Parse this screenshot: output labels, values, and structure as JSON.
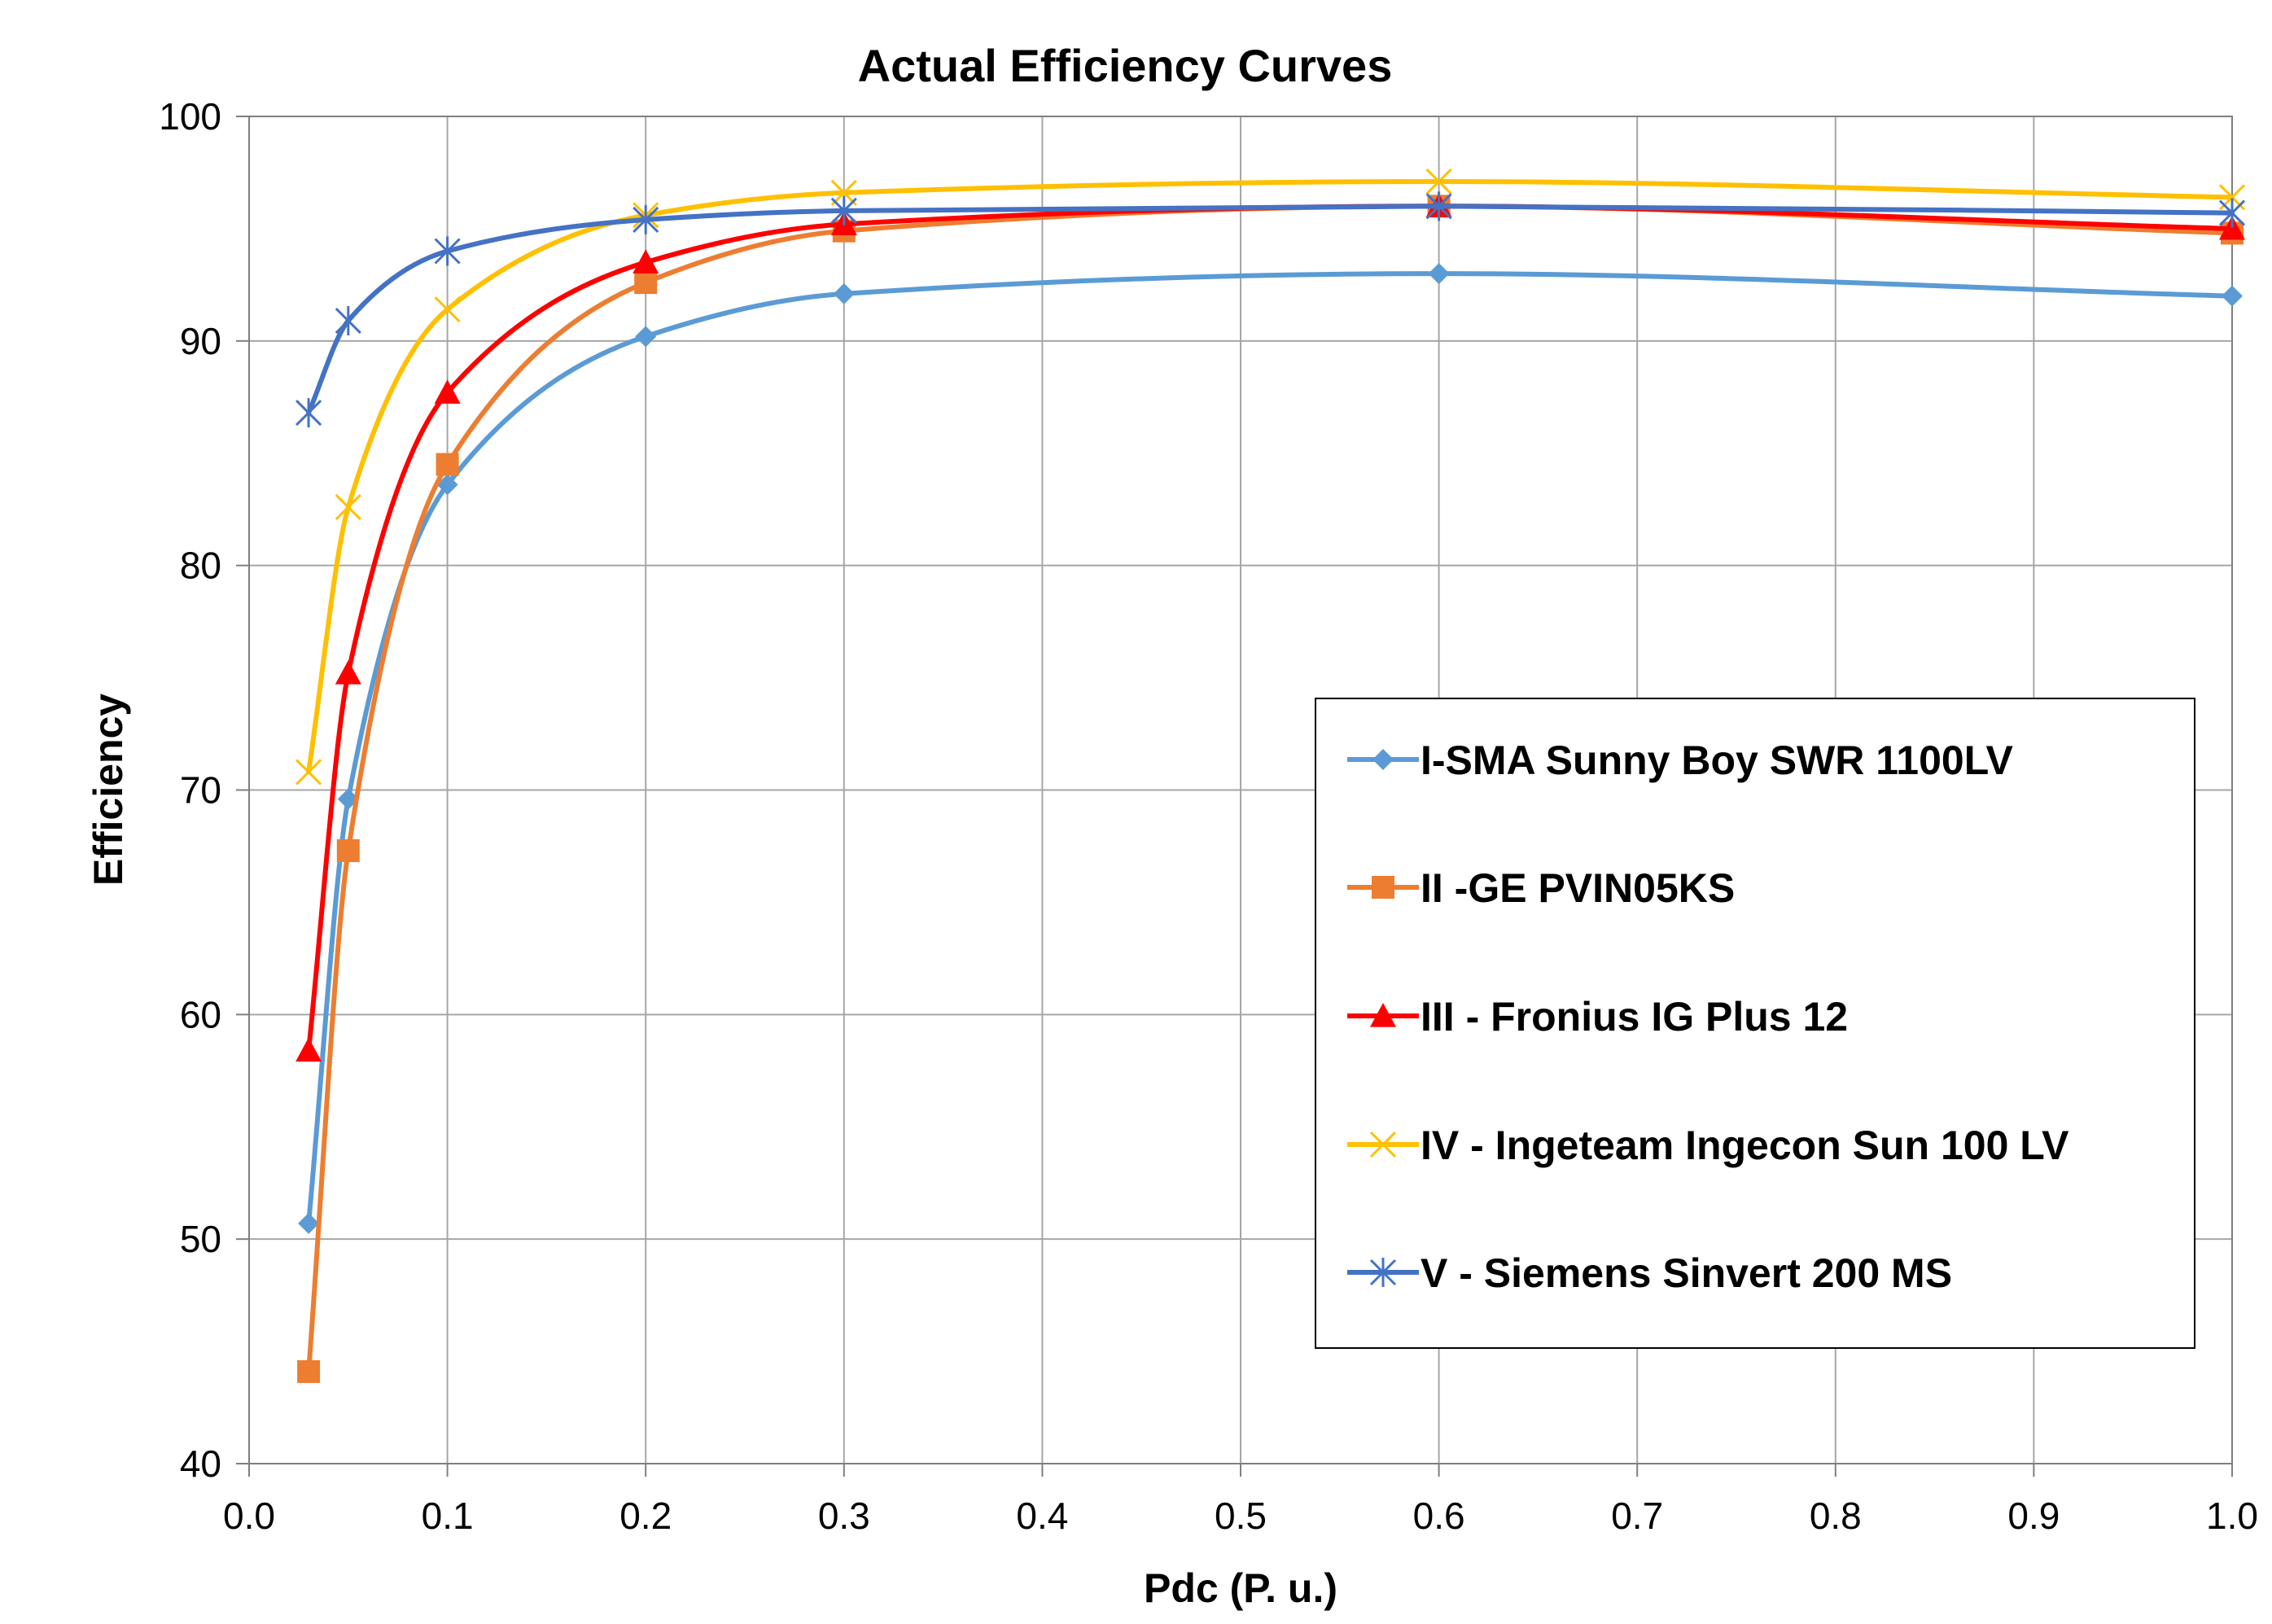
{
  "chart_data": {
    "type": "line",
    "title": "Actual Efficiency Curves",
    "xlabel": "Pdc (P. u.)",
    "ylabel": "Efficiency",
    "xlim": [
      0.0,
      1.0
    ],
    "ylim": [
      40,
      100
    ],
    "xticks": [
      "0.0",
      "0.1",
      "0.2",
      "0.3",
      "0.4",
      "0.5",
      "0.6",
      "0.7",
      "0.8",
      "0.9",
      "1.0"
    ],
    "yticks": [
      "40",
      "50",
      "60",
      "70",
      "80",
      "90",
      "100"
    ],
    "grid": true,
    "legend_position": "center-right",
    "series": [
      {
        "name": "I-SMA Sunny Boy SWR 1100LV",
        "color": "#5B9BD5",
        "marker": "diamond",
        "x": [
          0.03,
          0.05,
          0.1,
          0.2,
          0.3,
          0.6,
          1.0
        ],
        "y": [
          50.7,
          69.6,
          83.6,
          90.2,
          92.1,
          93.0,
          92.0
        ]
      },
      {
        "name": "II -GE PVIN05KS",
        "color": "#ED7D31",
        "marker": "square",
        "x": [
          0.03,
          0.05,
          0.1,
          0.2,
          0.3,
          0.6,
          1.0
        ],
        "y": [
          44.1,
          67.3,
          84.5,
          92.6,
          94.9,
          96.0,
          94.8
        ]
      },
      {
        "name": "III - Fronius IG Plus 12",
        "color": "#FF0000",
        "marker": "triangle",
        "x": [
          0.03,
          0.05,
          0.1,
          0.2,
          0.3,
          0.6,
          1.0
        ],
        "y": [
          58.4,
          75.2,
          87.7,
          93.5,
          95.2,
          96.0,
          95.0
        ]
      },
      {
        "name": "IV - Ingeteam Ingecon Sun 100 LV",
        "color": "#FFC000",
        "marker": "x",
        "x": [
          0.03,
          0.05,
          0.1,
          0.2,
          0.3,
          0.6,
          1.0
        ],
        "y": [
          70.8,
          82.6,
          91.4,
          95.6,
          96.6,
          97.1,
          96.4
        ]
      },
      {
        "name": "V - Siemens Sinvert 200 MS",
        "color": "#4472C4",
        "marker": "star",
        "x": [
          0.03,
          0.05,
          0.1,
          0.2,
          0.3,
          0.6,
          1.0
        ],
        "y": [
          86.8,
          90.9,
          94.0,
          95.4,
          95.8,
          96.0,
          95.7
        ]
      }
    ]
  }
}
